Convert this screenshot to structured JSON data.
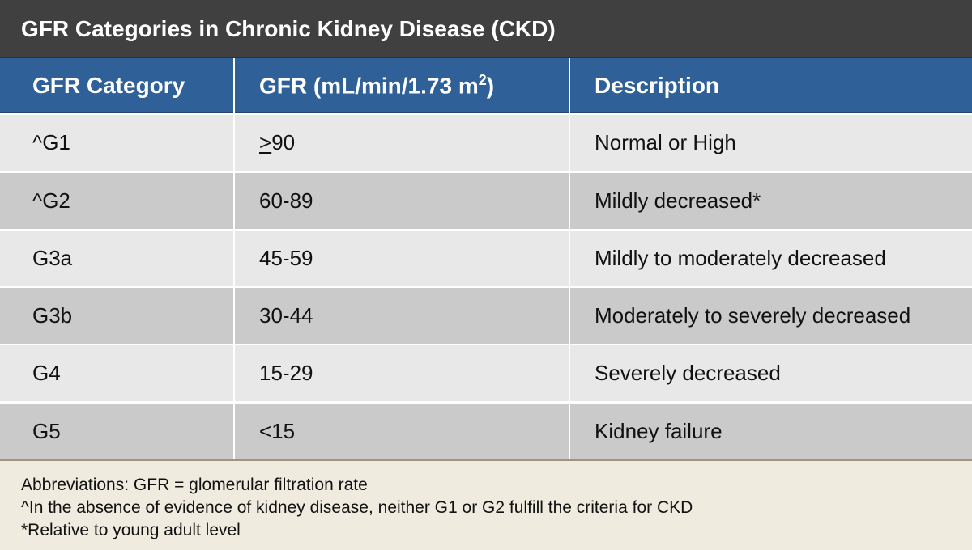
{
  "title": "GFR Categories in Chronic Kidney Disease (CKD)",
  "table": {
    "headers": {
      "category": "GFR Category",
      "gfr_prefix": "GFR (mL/min/1.73 m",
      "gfr_sup": "2",
      "gfr_suffix": ")",
      "description": "Description"
    },
    "rows": [
      {
        "category": "^G1",
        "gfr_underlined": ">",
        "gfr": "90",
        "description": "Normal or High"
      },
      {
        "category": "^G2",
        "gfr": "60-89",
        "description": "Mildly decreased*"
      },
      {
        "category": "G3a",
        "gfr": "45-59",
        "description": "Mildly to moderately decreased"
      },
      {
        "category": "G3b",
        "gfr": "30-44",
        "description": "Moderately to severely decreased"
      },
      {
        "category": "G4",
        "gfr": "15-29",
        "description": "Severely decreased"
      },
      {
        "category": "G5",
        "gfr": "<15",
        "description": "Kidney failure"
      }
    ]
  },
  "footnotes": [
    "Abbreviations: GFR = glomerular filtration rate",
    "^In the absence of evidence of kidney disease, neither G1 or G2 fulfill the criteria for CKD",
    "*Relative to young adult level"
  ],
  "colors": {
    "title_bg": "#404040",
    "header_bg": "#2f6198",
    "row_light": "#e8e8e8",
    "row_dark": "#cacaca",
    "footer_bg": "#efebdf"
  }
}
